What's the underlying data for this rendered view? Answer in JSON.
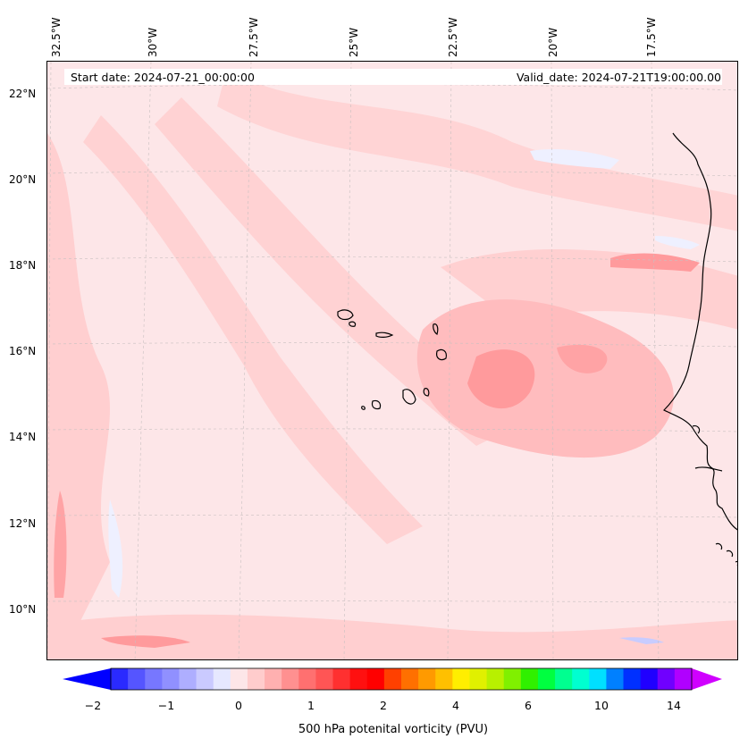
{
  "header": {
    "start_date": "Start date: 2024-07-21_00:00:00",
    "valid_date": "Valid_date: 2024-07-21T19:00:00.00"
  },
  "axes": {
    "longitudes": [
      "32.5°W",
      "30°W",
      "27.5°W",
      "25°W",
      "22.5°W",
      "20°W",
      "17.5°W"
    ],
    "latitudes": [
      "22°N",
      "20°N",
      "18°N",
      "16°N",
      "14°N",
      "12°N",
      "10°N"
    ],
    "gridlines": "dashed"
  },
  "colorbar": {
    "label": "500 hPa potenital vorticity (PVU)",
    "ticks": [
      "−2",
      "−1",
      "0",
      "1",
      "2",
      "4",
      "6",
      "10",
      "14"
    ],
    "colors": [
      "#0000ff",
      "#2a2aff",
      "#5555ff",
      "#7777ff",
      "#9090ff",
      "#aeaeff",
      "#cacaff",
      "#e6e8ff",
      "#fde6e8",
      "#ffcccc",
      "#ffb0b0",
      "#ff9090",
      "#ff7070",
      "#ff5555",
      "#ff3030",
      "#ff1010",
      "#ff0000",
      "#ff4000",
      "#ff7000",
      "#ff9a00",
      "#ffc000",
      "#ffee00",
      "#e0f000",
      "#b8f000",
      "#80f000",
      "#30f000",
      "#00ff40",
      "#00ff90",
      "#00ffd0",
      "#00e0ff",
      "#0080ff",
      "#0030ff",
      "#2000ff",
      "#7000ff",
      "#b000ff",
      "#d000ff"
    ]
  },
  "map": {
    "background_color": "#fde6e8",
    "coastline_color": "#000000"
  }
}
